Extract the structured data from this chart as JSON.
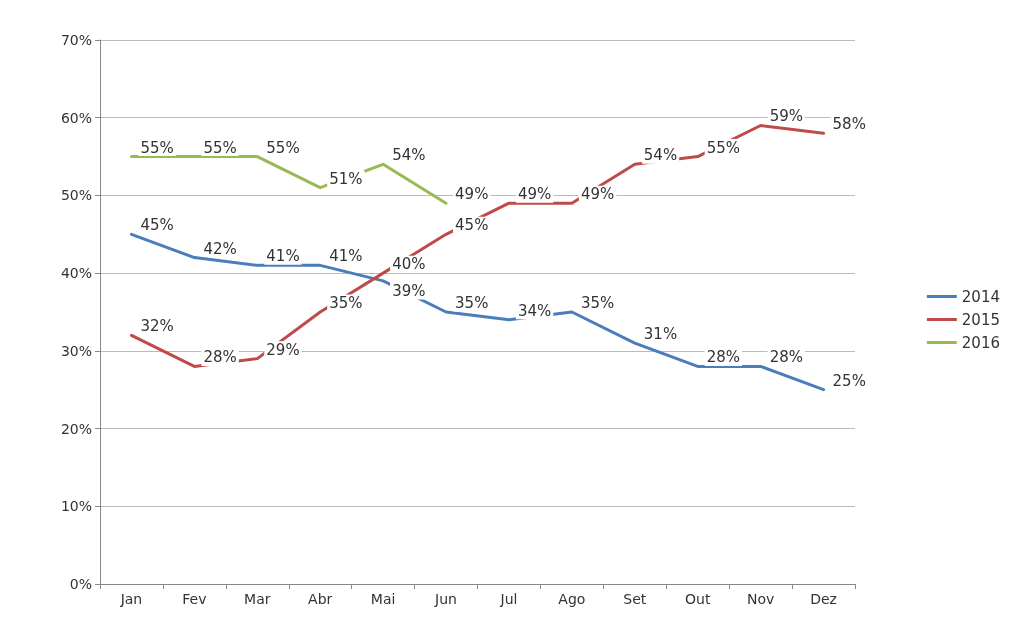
{
  "chart_data": {
    "type": "line",
    "categories": [
      "Jan",
      "Fev",
      "Mar",
      "Abr",
      "Mai",
      "Jun",
      "Jul",
      "Ago",
      "Set",
      "Out",
      "Nov",
      "Dez"
    ],
    "series": [
      {
        "name": "2014",
        "color": "#4a7ebb",
        "values": [
          45,
          42,
          41,
          41,
          39,
          35,
          34,
          35,
          31,
          28,
          28,
          25
        ],
        "value_labels": [
          "45%",
          "42%",
          "41%",
          "41%",
          "39%",
          "35%",
          "34%",
          "35%",
          "31%",
          "28%",
          "28%",
          "25%"
        ]
      },
      {
        "name": "2015",
        "color": "#be4b48",
        "values": [
          32,
          28,
          29,
          35,
          40,
          45,
          49,
          49,
          54,
          55,
          59,
          58
        ],
        "value_labels": [
          "32%",
          "28%",
          "29%",
          "35%",
          "40%",
          "45%",
          "49%",
          "49%",
          "54%",
          "55%",
          "59%",
          "58%"
        ]
      },
      {
        "name": "2016",
        "color": "#98b954",
        "values": [
          55,
          55,
          55,
          51,
          54,
          49,
          null,
          null,
          null,
          null,
          null,
          null
        ],
        "value_labels": [
          "55%",
          "55%",
          "55%",
          "51%",
          "54%",
          "49%",
          null,
          null,
          null,
          null,
          null,
          null
        ]
      }
    ],
    "ylim": [
      0,
      70
    ],
    "yticks": [
      {
        "value": 0,
        "label": "0%"
      },
      {
        "value": 10,
        "label": "10%"
      },
      {
        "value": 20,
        "label": "20%"
      },
      {
        "value": 30,
        "label": "30%"
      },
      {
        "value": 40,
        "label": "40%"
      },
      {
        "value": 50,
        "label": "50%"
      },
      {
        "value": 60,
        "label": "60%"
      },
      {
        "value": 70,
        "label": "70%"
      }
    ],
    "grid": "y",
    "legend": "right",
    "marker": "none",
    "line_style": "solid"
  }
}
